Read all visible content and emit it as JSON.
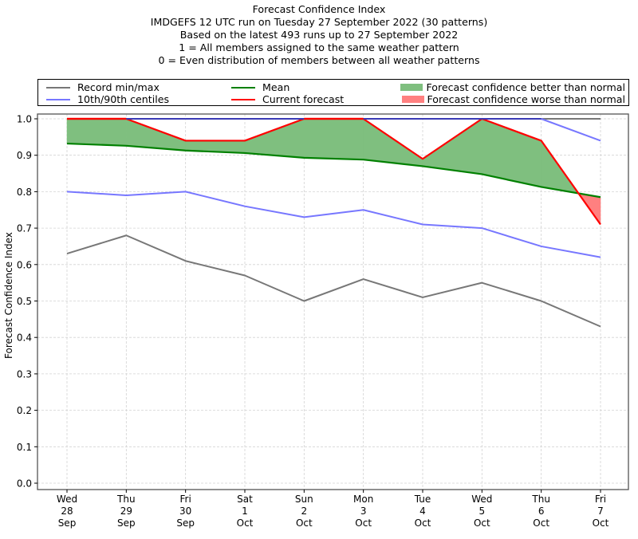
{
  "titles": [
    "Forecast Confidence Index",
    "IMDGEFS 12 UTC run on Tuesday 27 September 2022 (30 patterns)",
    "Based on the latest 493 runs up to 27 September 2022",
    "1 = All members assigned to the same weather pattern",
    "0 = Even distribution of members between all weather patterns"
  ],
  "legend": {
    "record": "Record min/max",
    "centiles": "10th/90th centiles",
    "mean": "Mean",
    "current": "Current forecast",
    "better": "Forecast confidence better than normal",
    "worse": "Forecast confidence worse than normal"
  },
  "colors": {
    "record": "#777777",
    "centiles": "#7777ff",
    "mean": "#008000",
    "current": "#ff0000",
    "better": "#7fbf7f",
    "worse": "#ff8080",
    "grid": "#d3d3d3"
  },
  "chart_data": {
    "type": "line",
    "title": "Forecast Confidence Index",
    "xlabel": "",
    "ylabel": "Forecast Confidence Index",
    "ylim": [
      0.0,
      1.0
    ],
    "grid": true,
    "legend_position": "top",
    "yticks": [
      "0.0",
      "0.1",
      "0.2",
      "0.3",
      "0.4",
      "0.5",
      "0.6",
      "0.7",
      "0.8",
      "0.9",
      "1.0"
    ],
    "categories": [
      [
        "Wed",
        "28",
        "Sep"
      ],
      [
        "Thu",
        "29",
        "Sep"
      ],
      [
        "Fri",
        "30",
        "Sep"
      ],
      [
        "Sat",
        "1",
        "Oct"
      ],
      [
        "Sun",
        "2",
        "Oct"
      ],
      [
        "Mon",
        "3",
        "Oct"
      ],
      [
        "Tue",
        "4",
        "Oct"
      ],
      [
        "Wed",
        "5",
        "Oct"
      ],
      [
        "Thu",
        "6",
        "Oct"
      ],
      [
        "Fri",
        "7",
        "Oct"
      ]
    ],
    "series": [
      {
        "name": "Record max",
        "values": [
          1.0,
          1.0,
          1.0,
          1.0,
          1.0,
          1.0,
          1.0,
          1.0,
          1.0,
          1.0
        ]
      },
      {
        "name": "Record min",
        "values": [
          0.63,
          0.68,
          0.61,
          0.57,
          0.5,
          0.56,
          0.51,
          0.55,
          0.5,
          0.43
        ]
      },
      {
        "name": "90th centile",
        "values": [
          1.0,
          1.0,
          1.0,
          1.0,
          1.0,
          1.0,
          1.0,
          1.0,
          1.0,
          0.94
        ]
      },
      {
        "name": "10th centile",
        "values": [
          0.8,
          0.79,
          0.8,
          0.76,
          0.73,
          0.75,
          0.71,
          0.7,
          0.65,
          0.62
        ]
      },
      {
        "name": "Mean",
        "values": [
          0.932,
          0.926,
          0.913,
          0.906,
          0.893,
          0.888,
          0.87,
          0.848,
          0.813,
          0.785
        ]
      },
      {
        "name": "Current forecast",
        "values": [
          1.0,
          1.0,
          0.94,
          0.94,
          1.0,
          1.0,
          0.89,
          1.0,
          0.94,
          0.71
        ]
      }
    ]
  }
}
